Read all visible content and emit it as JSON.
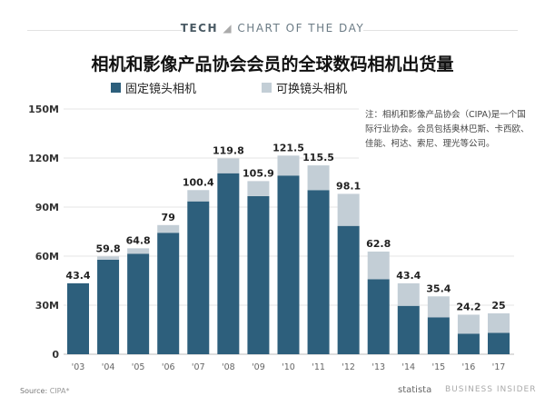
{
  "header": {
    "section": "TECH",
    "label": "CHART OF THE DAY"
  },
  "note": "注：相机和影像产品协会（CIPA)是一个国际行业协会。会员包括奥林巴斯、卡西欧、佳能、柯达、索尼、理光等公司。",
  "footer": {
    "source_label": "Source:",
    "source_value": "CIPA*",
    "statista": "statista",
    "publisher": "BUSINESS INSIDER"
  },
  "chart_data": {
    "type": "bar",
    "stacked": true,
    "title": "相机和影像产品协会会员的全球数码相机出货量",
    "legend_position": "top-left",
    "grid": true,
    "ylim": [
      0,
      150
    ],
    "yticks": [
      0,
      30,
      60,
      90,
      120,
      150
    ],
    "ytick_labels": [
      "0",
      "30M",
      "60M",
      "90M",
      "120M",
      "150M"
    ],
    "categories": [
      "'03",
      "'04",
      "'05",
      "'06",
      "'07",
      "'08",
      "'09",
      "'10",
      "'11",
      "'12",
      "'13",
      "'14",
      "'15",
      "'16",
      "'17"
    ],
    "totals": [
      43.4,
      59.8,
      64.8,
      79,
      100.4,
      119.8,
      105.9,
      121.5,
      115.5,
      98.1,
      62.8,
      43.4,
      35.4,
      24.2,
      25
    ],
    "total_labels": [
      "43.4",
      "59.8",
      "64.8",
      "79",
      "100.4",
      "119.8",
      "105.9",
      "121.5",
      "115.5",
      "98.1",
      "62.8",
      "43.4",
      "35.4",
      "24.2",
      "25"
    ],
    "series": [
      {
        "name": "固定镜头相机",
        "color": "#2d5f7c",
        "values": [
          43.4,
          57.8,
          61.5,
          74.3,
          93.5,
          110.7,
          96.7,
          109.3,
          100.4,
          78.5,
          45.9,
          29.6,
          22.6,
          12.6,
          13.1
        ]
      },
      {
        "name": "可换镜头相机",
        "color": "#c3ced6",
        "values": [
          0,
          2.0,
          3.3,
          4.7,
          6.9,
          9.1,
          9.2,
          12.2,
          15.1,
          19.6,
          16.9,
          13.8,
          12.8,
          11.6,
          11.9
        ]
      }
    ]
  }
}
